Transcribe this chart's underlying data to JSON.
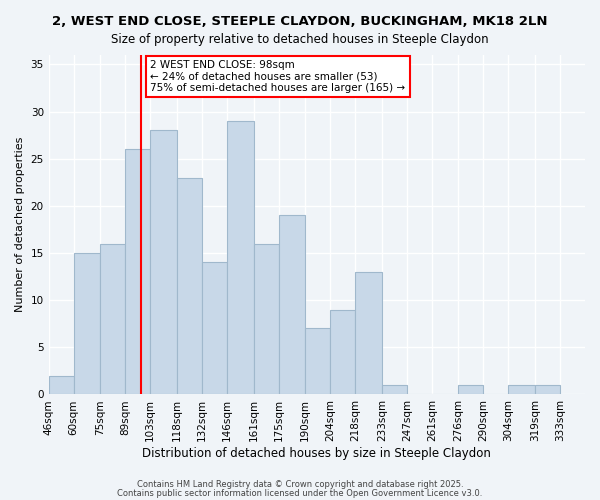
{
  "title1": "2, WEST END CLOSE, STEEPLE CLAYDON, BUCKINGHAM, MK18 2LN",
  "title2": "Size of property relative to detached houses in Steeple Claydon",
  "xlabel": "Distribution of detached houses by size in Steeple Claydon",
  "ylabel": "Number of detached properties",
  "bar_values": [
    2,
    15,
    16,
    26,
    28,
    23,
    14,
    29,
    16,
    19,
    7,
    9,
    13,
    1,
    0,
    0,
    1,
    0,
    1,
    1
  ],
  "bin_edges": [
    46,
    60,
    75,
    89,
    103,
    118,
    132,
    146,
    161,
    175,
    190,
    204,
    218,
    233,
    247,
    261,
    276,
    290,
    304,
    319,
    333
  ],
  "bin_labels": [
    "46sqm",
    "60sqm",
    "75sqm",
    "89sqm",
    "103sqm",
    "118sqm",
    "132sqm",
    "146sqm",
    "161sqm",
    "175sqm",
    "190sqm",
    "204sqm",
    "218sqm",
    "233sqm",
    "247sqm",
    "261sqm",
    "276sqm",
    "290sqm",
    "304sqm",
    "319sqm",
    "333sqm"
  ],
  "bar_color": "#c8d8e8",
  "bar_edge_color": "#a0b8cc",
  "red_line_x": 98,
  "annotation_title": "2 WEST END CLOSE: 98sqm",
  "annotation_line1": "← 24% of detached houses are smaller (53)",
  "annotation_line2": "75% of semi-detached houses are larger (165) →",
  "annotation_box_color": "white",
  "annotation_box_edge": "red",
  "red_line_color": "red",
  "ylim": [
    0,
    36
  ],
  "yticks": [
    0,
    5,
    10,
    15,
    20,
    25,
    30,
    35
  ],
  "footer1": "Contains HM Land Registry data © Crown copyright and database right 2025.",
  "footer2": "Contains public sector information licensed under the Open Government Licence v3.0.",
  "background_color": "#f0f4f8",
  "grid_color": "white"
}
